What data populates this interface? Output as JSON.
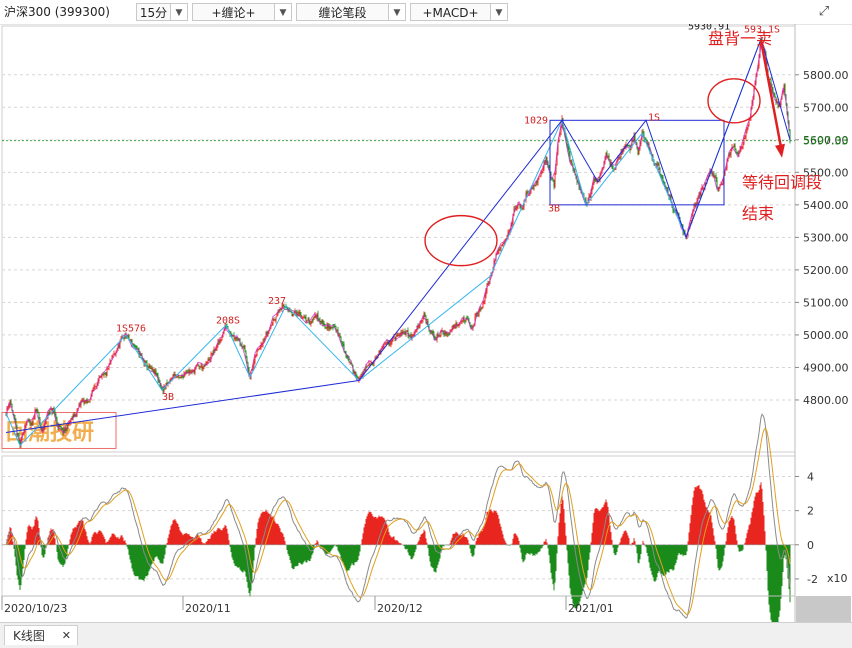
{
  "toolbar": {
    "symbol": "沪深300 (399300)",
    "period": "15分",
    "indicator1": "+缠论+",
    "indicator2": "缠论笔段",
    "indicator3": "+MACD+",
    "fullscreen_icon": "expand-icon"
  },
  "bottom_tab": {
    "label": "K线图",
    "close": "✕"
  },
  "watermark": "回潮技研",
  "colors": {
    "up": "#e8261f",
    "down": "#1a8a1a",
    "segment": "#1f2bd6",
    "stroke": "#35b6ee",
    "fractal": "#cc1fcc",
    "annot": "#e02020"
  },
  "chart_data": {
    "type": "candlestick",
    "title": "沪深300 (399300)",
    "period": "15分",
    "y_axis": {
      "ticks": [
        4800,
        4900,
        5000,
        5100,
        5200,
        5300,
        5400,
        5500,
        5600,
        5700,
        5800
      ],
      "last_price": 5597.33,
      "last_price_label": "5597.33",
      "range": [
        4640,
        5950
      ]
    },
    "x_axis": {
      "labels": [
        "2020/10/23",
        "2020/11",
        "2020/12",
        "2021/01"
      ]
    },
    "price_path": [
      [
        0,
        4760
      ],
      [
        4,
        4800
      ],
      [
        10,
        4710
      ],
      [
        14,
        4660
      ],
      [
        20,
        4735
      ],
      [
        26,
        4720
      ],
      [
        30,
        4780
      ],
      [
        36,
        4700
      ],
      [
        42,
        4760
      ],
      [
        47,
        4770
      ],
      [
        52,
        4720
      ],
      [
        58,
        4700
      ],
      [
        64,
        4735
      ],
      [
        70,
        4760
      ],
      [
        76,
        4800
      ],
      [
        82,
        4790
      ],
      [
        88,
        4840
      ],
      [
        94,
        4865
      ],
      [
        100,
        4880
      ],
      [
        106,
        4930
      ],
      [
        112,
        4960
      ],
      [
        116,
        4990
      ],
      [
        120,
        5000
      ],
      [
        126,
        4975
      ],
      [
        132,
        4950
      ],
      [
        138,
        4915
      ],
      [
        144,
        4895
      ],
      [
        150,
        4880
      ],
      [
        156,
        4830
      ],
      [
        162,
        4850
      ],
      [
        168,
        4880
      ],
      [
        174,
        4865
      ],
      [
        180,
        4890
      ],
      [
        186,
        4885
      ],
      [
        192,
        4905
      ],
      [
        198,
        4900
      ],
      [
        204,
        4930
      ],
      [
        210,
        4960
      ],
      [
        215,
        4990
      ],
      [
        220,
        5030
      ],
      [
        226,
        5000
      ],
      [
        232,
        4990
      ],
      [
        238,
        4960
      ],
      [
        244,
        4870
      ],
      [
        250,
        4940
      ],
      [
        256,
        4980
      ],
      [
        262,
        5010
      ],
      [
        268,
        5050
      ],
      [
        274,
        5080
      ],
      [
        280,
        5090
      ],
      [
        286,
        5060
      ],
      [
        292,
        5070
      ],
      [
        298,
        5050
      ],
      [
        304,
        5040
      ],
      [
        310,
        5060
      ],
      [
        316,
        5040
      ],
      [
        322,
        5020
      ],
      [
        328,
        5030
      ],
      [
        334,
        4990
      ],
      [
        340,
        4940
      ],
      [
        346,
        4900
      ],
      [
        353,
        4860
      ],
      [
        358,
        4890
      ],
      [
        364,
        4910
      ],
      [
        370,
        4930
      ],
      [
        376,
        4960
      ],
      [
        382,
        4975
      ],
      [
        388,
        4990
      ],
      [
        394,
        5000
      ],
      [
        400,
        5010
      ],
      [
        406,
        4990
      ],
      [
        412,
        5030
      ],
      [
        418,
        5060
      ],
      [
        424,
        5010
      ],
      [
        430,
        4990
      ],
      [
        436,
        5010
      ],
      [
        442,
        5000
      ],
      [
        448,
        5030
      ],
      [
        454,
        5040
      ],
      [
        460,
        5050
      ],
      [
        466,
        5020
      ],
      [
        470,
        5060
      ],
      [
        476,
        5080
      ],
      [
        480,
        5140
      ],
      [
        484,
        5180
      ],
      [
        488,
        5220
      ],
      [
        492,
        5260
      ],
      [
        496,
        5280
      ],
      [
        500,
        5300
      ],
      [
        504,
        5320
      ],
      [
        508,
        5380
      ],
      [
        512,
        5400
      ],
      [
        516,
        5390
      ],
      [
        520,
        5430
      ],
      [
        526,
        5450
      ],
      [
        532,
        5480
      ],
      [
        536,
        5510
      ],
      [
        540,
        5540
      ],
      [
        544,
        5500
      ],
      [
        548,
        5460
      ],
      [
        552,
        5590
      ],
      [
        556,
        5660
      ],
      [
        560,
        5600
      ],
      [
        564,
        5540
      ],
      [
        568,
        5500
      ],
      [
        572,
        5460
      ],
      [
        576,
        5440
      ],
      [
        580,
        5400
      ],
      [
        584,
        5430
      ],
      [
        588,
        5480
      ],
      [
        592,
        5470
      ],
      [
        596,
        5510
      ],
      [
        600,
        5560
      ],
      [
        604,
        5530
      ],
      [
        608,
        5510
      ],
      [
        612,
        5540
      ],
      [
        616,
        5560
      ],
      [
        620,
        5590
      ],
      [
        624,
        5570
      ],
      [
        628,
        5610
      ],
      [
        632,
        5560
      ],
      [
        636,
        5620
      ],
      [
        640,
        5600
      ],
      [
        644,
        5560
      ],
      [
        648,
        5530
      ],
      [
        652,
        5520
      ],
      [
        656,
        5480
      ],
      [
        660,
        5450
      ],
      [
        664,
        5420
      ],
      [
        668,
        5380
      ],
      [
        672,
        5370
      ],
      [
        676,
        5330
      ],
      [
        680,
        5300
      ],
      [
        684,
        5340
      ],
      [
        688,
        5390
      ],
      [
        692,
        5420
      ],
      [
        696,
        5450
      ],
      [
        700,
        5470
      ],
      [
        704,
        5500
      ],
      [
        708,
        5490
      ],
      [
        712,
        5450
      ],
      [
        716,
        5470
      ],
      [
        720,
        5520
      ],
      [
        724,
        5560
      ],
      [
        728,
        5580
      ],
      [
        732,
        5550
      ],
      [
        736,
        5580
      ],
      [
        740,
        5620
      ],
      [
        744,
        5670
      ],
      [
        748,
        5760
      ],
      [
        752,
        5830
      ],
      [
        755,
        5910
      ],
      [
        758,
        5880
      ],
      [
        762,
        5800
      ],
      [
        766,
        5760
      ],
      [
        770,
        5720
      ],
      [
        774,
        5700
      ],
      [
        778,
        5770
      ],
      [
        780,
        5720
      ],
      [
        784,
        5597
      ]
    ],
    "segment_lines": [
      [
        [
          0,
          4700
        ],
        [
          353,
          4860
        ],
        [
          556,
          5660
        ],
        [
          592,
          5470
        ],
        [
          640,
          5660
        ],
        [
          680,
          5300
        ],
        [
          755,
          5910
        ],
        [
          784,
          5600
        ]
      ]
    ],
    "stroke_lines": [
      [
        0,
        4760
      ],
      [
        14,
        4660
      ],
      [
        120,
        5000
      ],
      [
        156,
        4830
      ],
      [
        220,
        5030
      ],
      [
        244,
        4870
      ],
      [
        280,
        5090
      ],
      [
        353,
        4860
      ],
      [
        484,
        5180
      ],
      [
        556,
        5660
      ],
      [
        580,
        5400
      ],
      [
        636,
        5620
      ],
      [
        680,
        5300
      ],
      [
        755,
        5910
      ]
    ],
    "hub_boxes": [
      [
        [
          544,
          5400
        ],
        [
          718,
          5660
        ]
      ]
    ],
    "divergence_circles": [
      [
        455,
        5290
      ],
      [
        728,
        5720
      ]
    ],
    "point_labels": [
      {
        "text": "1S",
        "x": 110,
        "y": 5010
      },
      {
        "text": "576",
        "x": 122,
        "y": 5010
      },
      {
        "text": "3B",
        "x": 156,
        "y": 4800
      },
      {
        "text": "208S",
        "x": 210,
        "y": 5035
      },
      {
        "text": "237",
        "x": 262,
        "y": 5095
      },
      {
        "text": "1029",
        "x": 518,
        "y": 5650
      },
      {
        "text": "3B",
        "x": 542,
        "y": 5380
      },
      {
        "text": "1S",
        "x": 642,
        "y": 5660
      },
      {
        "text": "5930.91",
        "x": 682,
        "y": 5940
      },
      {
        "text": "593",
        "x": 738,
        "y": 5930
      },
      {
        "text": "1S",
        "x": 762,
        "y": 5930
      }
    ],
    "annotations": [
      "盘背一卖",
      "等待回调段",
      "结束"
    ],
    "macd": {
      "ticks": [
        4,
        2,
        0,
        -2
      ],
      "unit_label": "x10",
      "range": [
        -3,
        5.2
      ]
    }
  }
}
